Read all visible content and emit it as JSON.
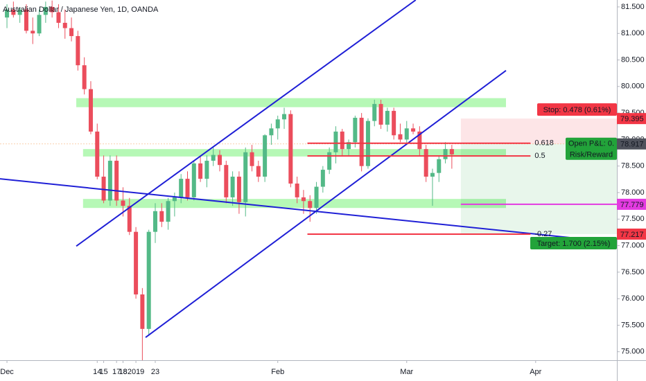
{
  "chart_data": {
    "type": "candlestick",
    "title": "Australian Dollar / Japanese Yen, 1D, OANDA",
    "x": [
      0,
      1,
      2,
      3,
      4,
      5,
      6,
      7,
      8,
      9,
      10,
      11,
      12,
      13,
      14,
      15,
      16,
      17,
      18,
      19,
      20,
      21,
      22,
      23,
      24,
      25,
      26,
      27,
      28,
      29,
      30,
      31,
      32,
      33,
      34,
      35,
      36,
      37,
      38,
      39,
      40,
      41,
      42,
      43,
      44,
      45,
      46,
      47,
      48,
      49,
      50,
      51,
      52,
      53,
      54,
      55,
      56,
      57,
      58,
      59,
      60,
      61,
      62,
      63,
      64,
      65,
      66,
      67,
      68,
      69
    ],
    "open": [
      81.3,
      81.45,
      81.35,
      81.45,
      81.05,
      81.0,
      81.35,
      81.5,
      81.4,
      81.2,
      81.1,
      80.95,
      80.4,
      79.95,
      79.15,
      78.3,
      77.85,
      78.6,
      77.85,
      77.75,
      77.26,
      76.08,
      75.43,
      77.26,
      77.65,
      77.45,
      77.84,
      77.91,
      78.26,
      77.91,
      78.55,
      78.26,
      78.6,
      78.71,
      78.52,
      77.91,
      78.3,
      77.82,
      78.76,
      78.5,
      78.3,
      79.08,
      79.21,
      79.38,
      79.48,
      78.17,
      77.91,
      77.84,
      77.71,
      78.11,
      78.43,
      78.76,
      79.15,
      78.82,
      78.95,
      79.41,
      78.5,
      79.35,
      79.67,
      79.28,
      79.54,
      79.1,
      79.0,
      79.21,
      79.15,
      78.82,
      78.3,
      78.37,
      78.63,
      78.82
    ],
    "high": [
      81.55,
      81.6,
      81.5,
      81.55,
      81.3,
      81.45,
      81.6,
      81.62,
      81.55,
      81.45,
      81.3,
      81.05,
      80.55,
      80.1,
      79.3,
      78.7,
      78.7,
      78.7,
      78.1,
      77.9,
      77.35,
      76.2,
      77.3,
      77.8,
      77.8,
      77.9,
      78.0,
      78.35,
      78.4,
      78.6,
      78.7,
      78.7,
      78.85,
      78.8,
      78.6,
      78.4,
      78.4,
      78.85,
      78.9,
      78.6,
      79.1,
      79.3,
      79.45,
      79.6,
      79.55,
      78.3,
      78.05,
      77.95,
      78.2,
      78.5,
      78.85,
      79.25,
      79.2,
      79.0,
      79.45,
      79.5,
      79.4,
      79.75,
      79.75,
      79.6,
      79.6,
      79.3,
      79.35,
      79.3,
      79.25,
      78.9,
      78.45,
      78.7,
      78.95,
      78.9
    ],
    "low": [
      81.1,
      81.3,
      81.2,
      81.0,
      80.8,
      80.95,
      81.2,
      81.3,
      81.1,
      80.9,
      80.85,
      80.3,
      79.85,
      79.1,
      78.25,
      77.8,
      77.75,
      77.75,
      77.55,
      77.2,
      76.0,
      74.84,
      75.3,
      77.05,
      77.35,
      77.3,
      77.55,
      77.8,
      77.85,
      77.85,
      78.2,
      78.1,
      78.5,
      78.4,
      77.8,
      77.75,
      77.6,
      77.55,
      78.4,
      78.2,
      78.2,
      78.9,
      79.0,
      79.2,
      78.1,
      77.8,
      77.6,
      77.45,
      77.6,
      78.0,
      78.35,
      78.55,
      78.7,
      78.7,
      78.85,
      78.4,
      78.45,
      79.25,
      79.2,
      79.15,
      79.0,
      78.95,
      78.9,
      79.1,
      78.7,
      78.2,
      77.75,
      78.2,
      78.55,
      78.45
    ],
    "close": [
      81.45,
      81.35,
      81.45,
      81.05,
      81.0,
      81.35,
      81.5,
      81.4,
      81.2,
      81.1,
      80.95,
      80.4,
      79.95,
      79.15,
      78.3,
      77.85,
      78.6,
      77.85,
      77.75,
      77.26,
      76.08,
      75.43,
      77.26,
      77.65,
      77.45,
      77.84,
      77.91,
      78.26,
      77.91,
      78.55,
      78.26,
      78.6,
      78.71,
      78.52,
      77.91,
      78.3,
      77.82,
      78.76,
      78.5,
      78.3,
      79.08,
      79.21,
      79.38,
      79.48,
      78.17,
      77.91,
      77.84,
      77.71,
      78.11,
      78.43,
      78.76,
      79.15,
      78.82,
      78.95,
      79.41,
      78.5,
      79.35,
      79.67,
      79.28,
      79.54,
      79.08,
      79.0,
      79.21,
      79.15,
      78.82,
      78.3,
      78.37,
      78.63,
      78.82,
      78.72
    ],
    "up_color": "#53b987",
    "down_color": "#eb4d5c",
    "grid": false,
    "xlim": [
      -1.08,
      94.6
    ],
    "xticks": [
      {
        "value": 0,
        "label": "Dec"
      },
      17,
      {
        "value": 20,
        "label": "2019"
      },
      14,
      23,
      {
        "value": 42,
        "label": "Feb"
      },
      18,
      {
        "value": 62,
        "label": "Mar"
      },
      18,
      {
        "value": 82,
        "label": "Apr"
      },
      15
    ],
    "ylim": [
      74.84,
      81.63
    ],
    "yticks": [
      {
        "value": 75,
        "label": "75.000"
      },
      {
        "value": 75.5,
        "label": "75.500"
      },
      {
        "value": 76,
        "label": "76.000"
      },
      {
        "value": 76.5,
        "label": "76.500"
      },
      {
        "value": 77,
        "label": "77.000"
      },
      {
        "value": 77.5,
        "label": "77.500"
      },
      {
        "value": 78,
        "label": "78.000"
      },
      {
        "value": 78.5,
        "label": "78.500"
      },
      {
        "value": 79,
        "label": "79.000"
      },
      {
        "value": 79.5,
        "label": "79.500"
      },
      {
        "value": 80,
        "label": "80.000"
      },
      {
        "value": 80.5,
        "label": "80.500"
      },
      {
        "value": 81,
        "label": "81.000"
      },
      {
        "value": 81.5,
        "label": "81.500"
      }
    ],
    "zone_color": "#9ef59e",
    "zones": [
      {
        "x": [
          10.75,
          77.4
        ],
        "y": [
          79.61,
          79.78
        ]
      },
      {
        "x": [
          11.8,
          77.4
        ],
        "y": [
          78.68,
          78.82
        ]
      },
      {
        "x": [
          11.8,
          77.4
        ],
        "y": [
          77.71,
          77.88
        ]
      }
    ],
    "line_color": "#1f1fd6",
    "trend_lines": [
      {
        "x": [
          10.75,
          63.4
        ],
        "y": [
          76.99,
          81.63
        ]
      },
      {
        "x": [
          21.5,
          77.4
        ],
        "y": [
          75.27,
          80.3
        ]
      },
      {
        "x": [
          -1.08,
          94.6
        ],
        "y": [
          78.26,
          77.06
        ]
      }
    ],
    "fib_color": "#f23645",
    "fib_x": [
      46.6,
      81.2
    ],
    "fib_levels": [
      {
        "level": 0.618,
        "price": 78.93
      },
      {
        "level": 0.5,
        "price": 78.69
      },
      {
        "level": -0.27,
        "price": 77.217
      }
    ],
    "position": {
      "x": [
        70.4,
        94.6
      ],
      "entry": 78.917,
      "stop": 79.395,
      "target": 77.217,
      "stop_label": "Stop: 0.478 (0.61%)",
      "pnl_label": "Open P&L: 0.",
      "rr_label": "Risk/Reward",
      "target_label": "Target: 1.700 (2.15%)",
      "stop_color": "#f23645",
      "target_color": "#22a33a",
      "entry_color": "#4f525c"
    },
    "horizontal_line": {
      "price": 77.779,
      "x": [
        70.4,
        94.6
      ],
      "color": "#e33ae0"
    }
  }
}
